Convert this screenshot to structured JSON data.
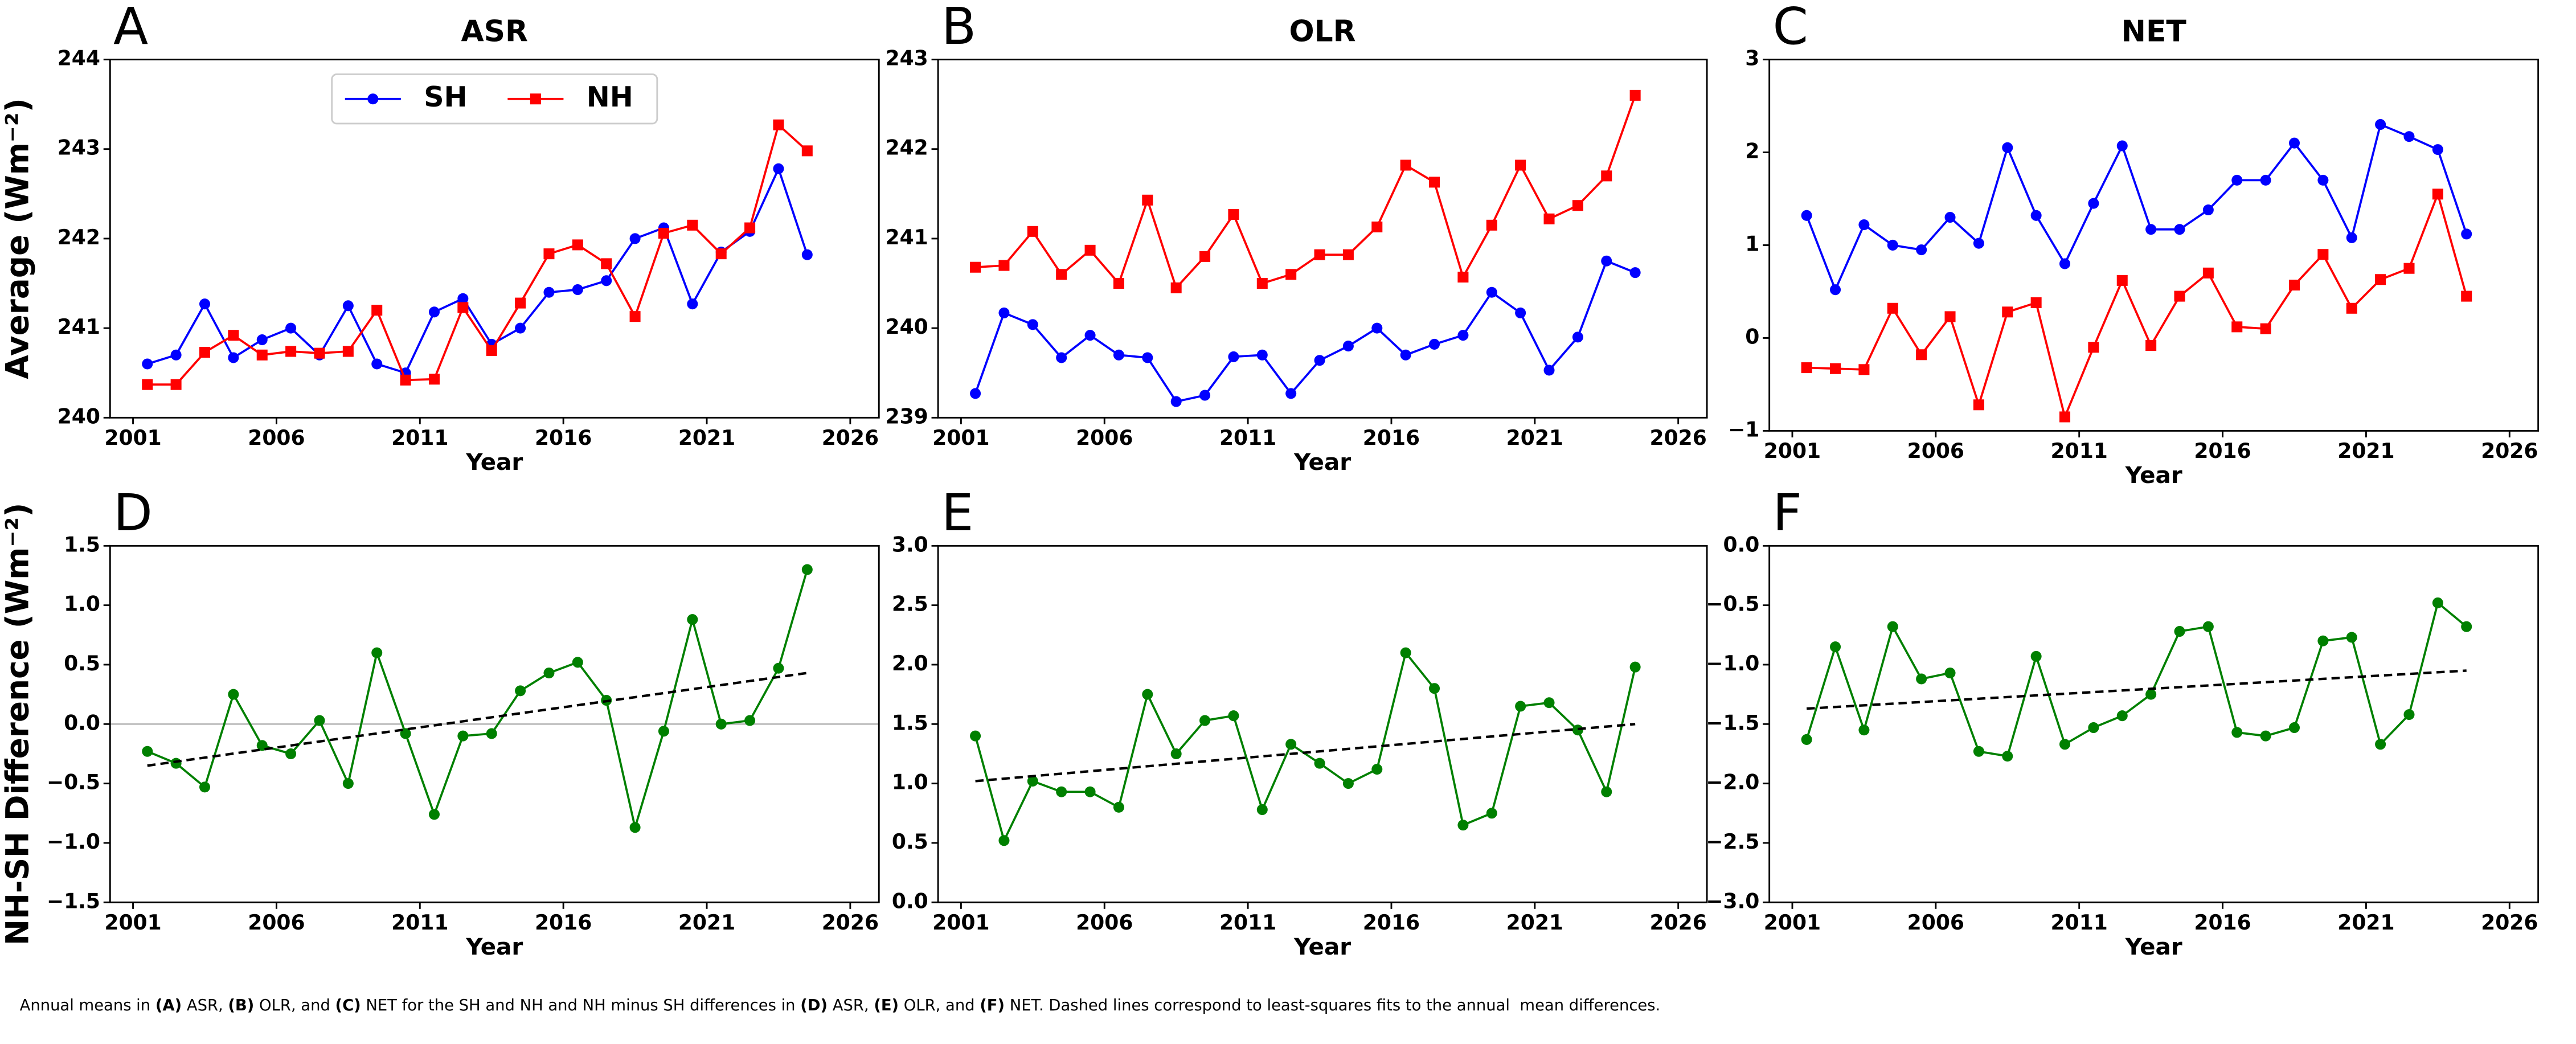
{
  "chart_data": [
    {
      "type": "line",
      "panel_label": "A",
      "title": "ASR",
      "xlabel": "Year",
      "ylabel": "Average (Wm⁻²)",
      "legend": "upper center",
      "xlim": [
        2000.2,
        2027
      ],
      "xticks": [
        2001,
        2006,
        2011,
        2016,
        2021,
        2026
      ],
      "ylim": [
        240,
        244
      ],
      "yticks": [
        240,
        241,
        242,
        243,
        244
      ],
      "x": [
        2001.5,
        2002.5,
        2003.5,
        2004.5,
        2005.5,
        2006.5,
        2007.5,
        2008.5,
        2009.5,
        2010.5,
        2011.5,
        2012.5,
        2013.5,
        2014.5,
        2015.5,
        2016.5,
        2017.5,
        2018.5,
        2019.5,
        2020.5,
        2021.5,
        2022.5,
        2023.5,
        2024.5
      ],
      "series": [
        {
          "name": "SH",
          "color": "#0000ff",
          "marker": "circle",
          "values": [
            240.6,
            240.7,
            241.27,
            240.67,
            240.87,
            241.0,
            240.7,
            241.25,
            240.6,
            240.5,
            241.18,
            241.33,
            240.82,
            241.0,
            241.4,
            241.43,
            241.53,
            242.0,
            242.12,
            241.27,
            241.85,
            242.08,
            242.78,
            241.82
          ]
        },
        {
          "name": "NH",
          "color": "#ff0000",
          "marker": "square",
          "values": [
            240.37,
            240.37,
            240.73,
            240.92,
            240.7,
            240.74,
            240.72,
            240.74,
            241.2,
            240.42,
            240.43,
            241.23,
            240.75,
            241.28,
            241.83,
            241.93,
            241.72,
            241.13,
            242.06,
            242.15,
            241.83,
            242.12,
            243.27,
            242.98
          ]
        }
      ]
    },
    {
      "type": "line",
      "panel_label": "B",
      "title": "OLR",
      "xlabel": "Year",
      "xlim": [
        2000.2,
        2027
      ],
      "xticks": [
        2001,
        2006,
        2011,
        2016,
        2021,
        2026
      ],
      "ylim": [
        239,
        243
      ],
      "yticks": [
        239,
        240,
        241,
        242,
        243
      ],
      "x": [
        2001.5,
        2002.5,
        2003.5,
        2004.5,
        2005.5,
        2006.5,
        2007.5,
        2008.5,
        2009.5,
        2010.5,
        2011.5,
        2012.5,
        2013.5,
        2014.5,
        2015.5,
        2016.5,
        2017.5,
        2018.5,
        2019.5,
        2020.5,
        2021.5,
        2022.5,
        2023.5,
        2024.5
      ],
      "series": [
        {
          "color": "#0000ff",
          "marker": "circle",
          "values": [
            239.27,
            240.17,
            240.04,
            239.67,
            239.92,
            239.7,
            239.67,
            239.18,
            239.25,
            239.68,
            239.7,
            239.27,
            239.64,
            239.8,
            240.0,
            239.7,
            239.82,
            239.92,
            240.4,
            240.17,
            239.53,
            239.9,
            240.75,
            240.62
          ]
        },
        {
          "color": "#ff0000",
          "marker": "square",
          "values": [
            240.68,
            240.7,
            241.08,
            240.6,
            240.87,
            240.5,
            241.43,
            240.45,
            240.8,
            241.27,
            240.5,
            240.6,
            240.82,
            240.82,
            241.13,
            241.82,
            241.63,
            240.57,
            241.15,
            241.82,
            241.22,
            241.37,
            241.7,
            242.6
          ]
        }
      ]
    },
    {
      "type": "line",
      "panel_label": "C",
      "title": "NET",
      "xlabel": "Year",
      "xlim": [
        2000.2,
        2027
      ],
      "xticks": [
        2001,
        2006,
        2011,
        2016,
        2021,
        2026
      ],
      "ylim": [
        -1,
        3
      ],
      "yticks": [
        {
          "value": -1,
          "label": "−1"
        },
        0,
        1,
        2,
        3
      ],
      "x": [
        2001.5,
        2002.5,
        2003.5,
        2004.5,
        2005.5,
        2006.5,
        2007.5,
        2008.5,
        2009.5,
        2010.5,
        2011.5,
        2012.5,
        2013.5,
        2014.5,
        2015.5,
        2016.5,
        2017.5,
        2018.5,
        2019.5,
        2020.5,
        2021.5,
        2022.5,
        2023.5,
        2024.5
      ],
      "series": [
        {
          "color": "#0000ff",
          "marker": "circle",
          "values": [
            1.32,
            0.52,
            1.22,
            1.0,
            0.95,
            1.3,
            1.02,
            2.05,
            1.32,
            0.8,
            1.45,
            2.07,
            1.17,
            1.17,
            1.38,
            1.7,
            1.7,
            2.1,
            1.7,
            1.08,
            2.3,
            2.17,
            2.03,
            1.12
          ]
        },
        {
          "color": "#ff0000",
          "marker": "square",
          "values": [
            -0.32,
            -0.33,
            -0.34,
            0.32,
            -0.18,
            0.23,
            -0.72,
            0.28,
            0.38,
            -0.85,
            -0.1,
            0.62,
            -0.08,
            0.45,
            0.7,
            0.12,
            0.1,
            0.57,
            0.9,
            0.32,
            0.63,
            0.75,
            1.55,
            0.45
          ]
        }
      ]
    },
    {
      "type": "line",
      "panel_label": "D",
      "xlabel": "Year",
      "ylabel": "NH-SH Difference (Wm⁻²)",
      "zero_line": true,
      "xlim": [
        2000.2,
        2027
      ],
      "xticks": [
        2001,
        2006,
        2011,
        2016,
        2021,
        2026
      ],
      "ylim": [
        -1.5,
        1.5
      ],
      "yticks": [
        {
          "value": -1.5,
          "label": "−1.5"
        },
        {
          "value": -1,
          "label": "−1.0"
        },
        {
          "value": -0.5,
          "label": "−0.5"
        },
        {
          "value": 0,
          "label": "0.0"
        },
        0.5,
        {
          "value": 1,
          "label": "1.0"
        },
        1.5
      ],
      "x": [
        2001.5,
        2002.5,
        2003.5,
        2004.5,
        2005.5,
        2006.5,
        2007.5,
        2008.5,
        2009.5,
        2010.5,
        2011.5,
        2012.5,
        2013.5,
        2014.5,
        2015.5,
        2016.5,
        2017.5,
        2018.5,
        2019.5,
        2020.5,
        2021.5,
        2022.5,
        2023.5,
        2024.5
      ],
      "series": [
        {
          "color": "#008000",
          "marker": "circle",
          "values": [
            -0.23,
            -0.33,
            -0.53,
            0.25,
            -0.18,
            -0.25,
            0.03,
            -0.5,
            0.6,
            -0.08,
            -0.76,
            -0.1,
            -0.08,
            0.28,
            0.43,
            0.52,
            0.2,
            -0.87,
            -0.06,
            0.88,
            0.0,
            0.03,
            0.47,
            1.3
          ]
        }
      ],
      "trend": {
        "x": [
          2001.5,
          2024.5
        ],
        "values": [
          -0.35,
          0.43
        ]
      }
    },
    {
      "type": "line",
      "panel_label": "E",
      "xlabel": "Year",
      "xlim": [
        2000.2,
        2027
      ],
      "xticks": [
        2001,
        2006,
        2011,
        2016,
        2021,
        2026
      ],
      "ylim": [
        0,
        3
      ],
      "yticks": [
        {
          "value": 0,
          "label": "0.0"
        },
        0.5,
        {
          "value": 1,
          "label": "1.0"
        },
        1.5,
        {
          "value": 2,
          "label": "2.0"
        },
        2.5,
        {
          "value": 3,
          "label": "3.0"
        }
      ],
      "x": [
        2001.5,
        2002.5,
        2003.5,
        2004.5,
        2005.5,
        2006.5,
        2007.5,
        2008.5,
        2009.5,
        2010.5,
        2011.5,
        2012.5,
        2013.5,
        2014.5,
        2015.5,
        2016.5,
        2017.5,
        2018.5,
        2019.5,
        2020.5,
        2021.5,
        2022.5,
        2023.5,
        2024.5
      ],
      "series": [
        {
          "color": "#008000",
          "marker": "circle",
          "values": [
            1.4,
            0.52,
            1.02,
            0.93,
            0.93,
            0.8,
            1.75,
            1.25,
            1.53,
            1.57,
            0.78,
            1.33,
            1.17,
            1.0,
            1.12,
            2.1,
            1.8,
            0.65,
            0.75,
            1.65,
            1.68,
            1.45,
            0.93,
            1.98
          ]
        }
      ],
      "trend": {
        "x": [
          2001.5,
          2024.5
        ],
        "values": [
          1.02,
          1.5
        ]
      }
    },
    {
      "type": "line",
      "panel_label": "F",
      "xlabel": "Year",
      "xlim": [
        2000.2,
        2027
      ],
      "xticks": [
        2001,
        2006,
        2011,
        2016,
        2021,
        2026
      ],
      "ylim": [
        -3,
        0
      ],
      "yticks": [
        {
          "value": -3,
          "label": "−3.0"
        },
        {
          "value": -2.5,
          "label": "−2.5"
        },
        {
          "value": -2,
          "label": "−2.0"
        },
        {
          "value": -1.5,
          "label": "−1.5"
        },
        {
          "value": -1,
          "label": "−1.0"
        },
        {
          "value": -0.5,
          "label": "−0.5"
        },
        {
          "value": 0,
          "label": "0.0"
        }
      ],
      "x": [
        2001.5,
        2002.5,
        2003.5,
        2004.5,
        2005.5,
        2006.5,
        2007.5,
        2008.5,
        2009.5,
        2010.5,
        2011.5,
        2012.5,
        2013.5,
        2014.5,
        2015.5,
        2016.5,
        2017.5,
        2018.5,
        2019.5,
        2020.5,
        2021.5,
        2022.5,
        2023.5,
        2024.5
      ],
      "series": [
        {
          "color": "#008000",
          "marker": "circle",
          "values": [
            -1.63,
            -0.85,
            -1.55,
            -0.68,
            -1.12,
            -1.07,
            -1.73,
            -1.77,
            -0.93,
            -1.67,
            -1.53,
            -1.43,
            -1.25,
            -0.72,
            -0.68,
            -1.57,
            -1.6,
            -1.53,
            -0.8,
            -0.77,
            -1.67,
            -1.42,
            -0.48,
            -0.68
          ]
        }
      ],
      "trend": {
        "x": [
          2001.5,
          2024.5
        ],
        "values": [
          -1.37,
          -1.05
        ]
      }
    }
  ],
  "caption": [
    {
      "text": "Annual means in ",
      "bold": false
    },
    {
      "text": "(A)",
      "bold": true
    },
    {
      "text": " ASR, ",
      "bold": false
    },
    {
      "text": "(B)",
      "bold": true
    },
    {
      "text": " OLR, and ",
      "bold": false
    },
    {
      "text": "(C)",
      "bold": true
    },
    {
      "text": " NET for the SH and NH and NH minus SH differences in ",
      "bold": false
    },
    {
      "text": "(D)",
      "bold": true
    },
    {
      "text": " ASR, ",
      "bold": false
    },
    {
      "text": "(E)",
      "bold": true
    },
    {
      "text": " OLR, and ",
      "bold": false
    },
    {
      "text": "(F)",
      "bold": true
    },
    {
      "text": " NET. Dashed lines correspond to least-squares fits to the annual  mean differences.",
      "bold": false
    }
  ]
}
